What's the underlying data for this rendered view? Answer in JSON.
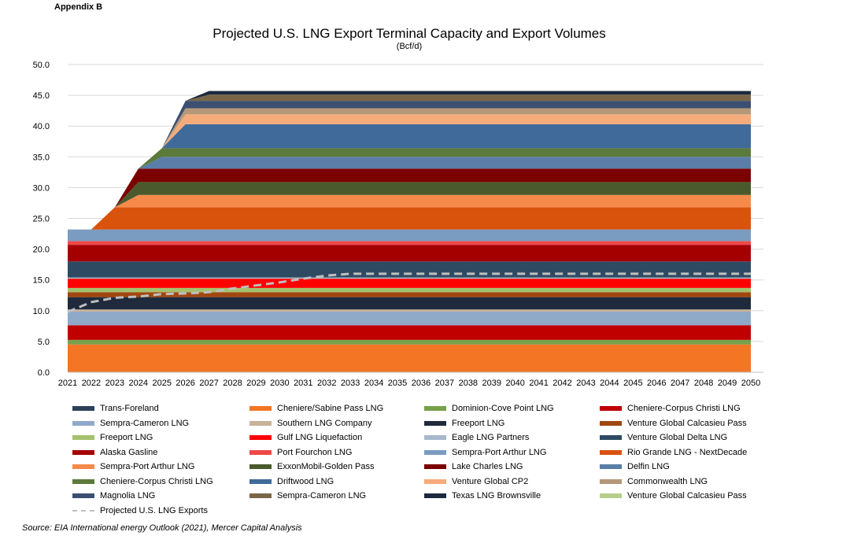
{
  "header": {
    "appendix": "Appendix B"
  },
  "chart_data": {
    "type": "area",
    "title": "Projected U.S. LNG Export Terminal Capacity and Export Volumes",
    "subtitle": "(Bcf/d)",
    "x": [
      "2021",
      "2022",
      "2023",
      "2024",
      "2025",
      "2026",
      "2027",
      "2028",
      "2029",
      "2030",
      "2031",
      "2032",
      "2033",
      "2034",
      "2035",
      "2036",
      "2037",
      "2038",
      "2039",
      "2040",
      "2041",
      "2042",
      "2043",
      "2044",
      "2045",
      "2046",
      "2047",
      "2048",
      "2049",
      "2050"
    ],
    "ylim": [
      0,
      50
    ],
    "yticks": [
      "0.0",
      "5.0",
      "10.0",
      "15.0",
      "20.0",
      "25.0",
      "30.0",
      "35.0",
      "40.0",
      "45.0",
      "50.0"
    ],
    "grid": true,
    "stacked": true,
    "series": [
      {
        "name": "Cheniere/Sabine Pass LNG",
        "color": "#f47524",
        "capacity": 4.5,
        "start": "2021"
      },
      {
        "name": "Dominion-Cove Point LNG",
        "color": "#77a04a",
        "capacity": 0.75,
        "start": "2021"
      },
      {
        "name": "Cheniere-Corpus Christi LNG",
        "color": "#c00000",
        "capacity": 2.4,
        "start": "2021"
      },
      {
        "name": "Sempra-Cameron LNG",
        "color": "#8fa9c9",
        "capacity": 2.2,
        "start": "2021"
      },
      {
        "name": "Southern LNG Company",
        "color": "#c8b299",
        "capacity": 0.35,
        "start": "2021"
      },
      {
        "name": "Freeport LNG",
        "color": "#1f2a3c",
        "capacity": 2.0,
        "start": "2021"
      },
      {
        "name": "Venture Global Calcasieu Pass",
        "color": "#a0470f",
        "capacity": 0.8,
        "start": "2021"
      },
      {
        "name": "Freeport LNG",
        "color": "#a6c16d",
        "capacity": 0.7,
        "start": "2021"
      },
      {
        "name": "Gulf LNG Liquefaction",
        "color": "#ff0000",
        "capacity": 1.5,
        "start": "2021"
      },
      {
        "name": "Eagle LNG Partners",
        "color": "#a8b8cc",
        "capacity": 0.2,
        "start": "2021"
      },
      {
        "name": "Venture Global Delta LNG",
        "color": "#2e4a63",
        "capacity": 2.6,
        "start": "2021"
      },
      {
        "name": "Alaska Gasline",
        "color": "#a50000",
        "capacity": 2.7,
        "start": "2021"
      },
      {
        "name": "Port Fourchon LNG",
        "color": "#f04848",
        "capacity": 0.6,
        "start": "2021"
      },
      {
        "name": "Sempra-Port Arthur LNG",
        "color": "#7a9cc0",
        "capacity": 1.9,
        "start": "2021"
      },
      {
        "name": "Rio Grande LNG - NextDecade",
        "color": "#d9530d",
        "capacity": 3.6,
        "start": "2023"
      },
      {
        "name": "Sempra-Port Arthur LNG",
        "color": "#f58a4b",
        "capacity": 2.0,
        "start": "2024"
      },
      {
        "name": "ExxonMobil-Golden Pass",
        "color": "#4a5a2c",
        "capacity": 2.1,
        "start": "2024"
      },
      {
        "name": "Lake Charles LNG",
        "color": "#7b0000",
        "capacity": 2.2,
        "start": "2024"
      },
      {
        "name": "Delfin LNG",
        "color": "#5a7ea8",
        "capacity": 1.9,
        "start": "2025"
      },
      {
        "name": "Cheniere-Corpus Christi LNG",
        "color": "#5c7a3a",
        "capacity": 1.4,
        "start": "2025"
      },
      {
        "name": "Driftwood LNG",
        "color": "#3f6a9a",
        "capacity": 3.9,
        "start": "2026"
      },
      {
        "name": "Venture Global CP2",
        "color": "#f5ab7a",
        "capacity": 1.6,
        "start": "2026"
      },
      {
        "name": "Commonwealth LNG",
        "color": "#b49878",
        "capacity": 1.0,
        "start": "2026"
      },
      {
        "name": "Magnolia LNG",
        "color": "#3c4f72",
        "capacity": 1.2,
        "start": "2026"
      },
      {
        "name": "Sempra-Cameron LNG",
        "color": "#7a6648",
        "capacity": 1.0,
        "start": "2027"
      },
      {
        "name": "Texas LNG Brownsville",
        "color": "#1c2a40",
        "capacity": 0.6,
        "start": "2027"
      },
      {
        "name": "Venture Global Calcasieu Pass",
        "color": "#b5cf8a",
        "capacity": 0.0,
        "start": "2027"
      },
      {
        "name": "Trans-Foreland",
        "color": "#2c4159",
        "capacity": 0.0,
        "start": "2027"
      }
    ],
    "exports": {
      "name": "Projected U.S. LNG Exports",
      "color": "#bfbfbf",
      "values": [
        9.8,
        11.4,
        12.1,
        12.3,
        12.7,
        12.8,
        13.0,
        13.6,
        14.1,
        14.6,
        15.2,
        15.7,
        16.0,
        16.0,
        16.0,
        16.0,
        16.0,
        16.0,
        16.0,
        16.0,
        16.0,
        16.0,
        16.0,
        16.0,
        16.0,
        16.0,
        16.0,
        16.0,
        16.0,
        16.0
      ]
    }
  },
  "legend": [
    {
      "label": "Trans-Foreland",
      "color": "#2c4159"
    },
    {
      "label": "Cheniere/Sabine Pass LNG",
      "color": "#f47524"
    },
    {
      "label": "Dominion-Cove Point LNG",
      "color": "#77a04a"
    },
    {
      "label": "Cheniere-Corpus Christi LNG",
      "color": "#c00000"
    },
    {
      "label": "Sempra-Cameron LNG",
      "color": "#8fa9c9"
    },
    {
      "label": "Southern LNG Company",
      "color": "#c8b299"
    },
    {
      "label": "Freeport LNG",
      "color": "#1f2a3c"
    },
    {
      "label": "Venture Global Calcasieu Pass",
      "color": "#a0470f"
    },
    {
      "label": "Freeport LNG",
      "color": "#a6c16d"
    },
    {
      "label": "Gulf LNG Liquefaction",
      "color": "#ff0000"
    },
    {
      "label": "Eagle LNG Partners",
      "color": "#a8b8cc"
    },
    {
      "label": "Venture Global Delta LNG",
      "color": "#2e4a63"
    },
    {
      "label": "Alaska Gasline",
      "color": "#a50000"
    },
    {
      "label": "Port Fourchon LNG",
      "color": "#f04848"
    },
    {
      "label": "Sempra-Port Arthur LNG",
      "color": "#7a9cc0"
    },
    {
      "label": "Rio Grande LNG - NextDecade",
      "color": "#d9530d"
    },
    {
      "label": "Sempra-Port Arthur LNG",
      "color": "#f58a4b"
    },
    {
      "label": "ExxonMobil-Golden Pass",
      "color": "#4a5a2c"
    },
    {
      "label": "Lake Charles LNG",
      "color": "#7b0000"
    },
    {
      "label": "Delfin LNG",
      "color": "#5a7ea8"
    },
    {
      "label": "Cheniere-Corpus Christi LNG",
      "color": "#5c7a3a"
    },
    {
      "label": "Driftwood LNG",
      "color": "#3f6a9a"
    },
    {
      "label": "Venture Global CP2",
      "color": "#f5ab7a"
    },
    {
      "label": "Commonwealth LNG",
      "color": "#b49878"
    },
    {
      "label": "Magnolia LNG",
      "color": "#3c4f72"
    },
    {
      "label": "Sempra-Cameron LNG",
      "color": "#7a6648"
    },
    {
      "label": "Texas LNG Brownsville",
      "color": "#1c2a40"
    },
    {
      "label": "Venture Global Calcasieu Pass",
      "color": "#b5cf8a"
    },
    {
      "label": "Projected U.S. LNG Exports",
      "color": "#bfbfbf",
      "dashed": true
    }
  ],
  "source": "Source: EIA International energy Outlook (2021), Mercer Capital Analysis"
}
